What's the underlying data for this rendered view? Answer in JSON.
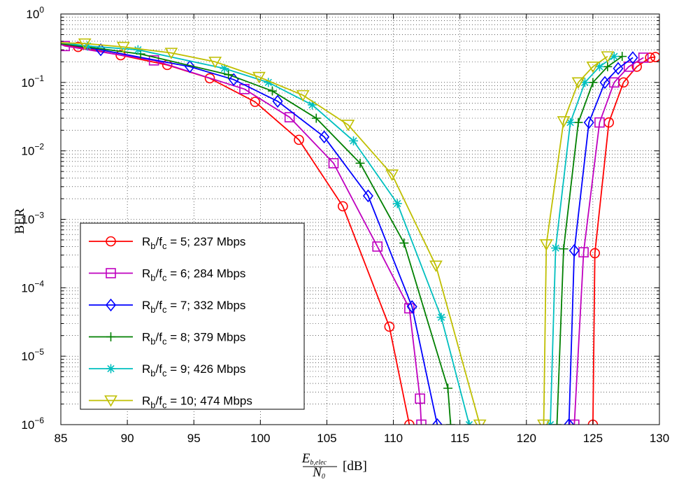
{
  "chart_data": {
    "type": "line",
    "xlabel_numer": "E",
    "xlabel_numer_sub": "b,elec",
    "xlabel_denom": "N",
    "xlabel_denom_sub": "0",
    "xlabel_unit": "[dB]",
    "ylabel": "BER",
    "xlim": [
      85,
      130
    ],
    "ylim": [
      1e-06,
      1
    ],
    "yscale": "log",
    "grid": true,
    "legend_position": "lower-left",
    "x_ticks": [
      "85",
      "90",
      "95",
      "100",
      "105",
      "110",
      "115",
      "120",
      "125",
      "130"
    ],
    "y_ticks": [
      {
        "base": "10",
        "exp": "0"
      },
      {
        "base": "10",
        "exp": "−1"
      },
      {
        "base": "10",
        "exp": "−2"
      },
      {
        "base": "10",
        "exp": "−3"
      },
      {
        "base": "10",
        "exp": "−4"
      },
      {
        "base": "10",
        "exp": "−5"
      },
      {
        "base": "10",
        "exp": "−6"
      }
    ],
    "series": [
      {
        "name": "R_b/f_c = 5; 237 Mbps",
        "leg": {
          "a": "R",
          "b": "b",
          "c": "/f",
          "d": "c",
          "e": " = 5; 237 Mbps"
        },
        "color": "#ff0000",
        "marker": "circle",
        "left": [
          [
            85,
            0.36
          ],
          [
            86.3,
            0.33
          ],
          [
            89.5,
            0.25
          ],
          [
            93,
            0.18
          ],
          [
            96.2,
            0.115
          ],
          [
            99.6,
            0.052
          ],
          [
            102.9,
            0.0145
          ],
          [
            106.2,
            0.00155
          ],
          [
            109.7,
            2.7e-05
          ],
          [
            111.2,
            1e-06
          ]
        ],
        "right": [
          [
            125,
            1e-06
          ],
          [
            125.15,
            0.00032
          ],
          [
            126.2,
            0.026
          ],
          [
            127.3,
            0.1
          ],
          [
            128.3,
            0.17
          ],
          [
            129.3,
            0.23
          ],
          [
            129.7,
            0.235
          ]
        ]
      },
      {
        "name": "R_b/f_c = 6; 284 Mbps",
        "leg": {
          "a": "R",
          "b": "b",
          "c": "/f",
          "d": "c",
          "e": " = 6; 284 Mbps"
        },
        "color": "#bf00bf",
        "marker": "square",
        "left": [
          [
            85,
            0.36
          ],
          [
            85.3,
            0.34
          ],
          [
            92,
            0.21
          ],
          [
            98.8,
            0.08
          ],
          [
            102.2,
            0.031
          ],
          [
            105.5,
            0.0066
          ],
          [
            108.8,
            0.0004
          ],
          [
            111.2,
            5e-05
          ],
          [
            112,
            2.4e-06
          ],
          [
            112.1,
            1e-06
          ]
        ],
        "right": [
          [
            123.6,
            1e-06
          ],
          [
            124.3,
            0.00033
          ],
          [
            125.5,
            0.026
          ],
          [
            126.6,
            0.1
          ],
          [
            127.7,
            0.17
          ],
          [
            128.8,
            0.23
          ]
        ]
      },
      {
        "name": "R_b/f_c = 7; 332 Mbps",
        "leg": {
          "a": "R",
          "b": "b",
          "c": "/f",
          "d": "c",
          "e": " = 7; 332 Mbps"
        },
        "color": "#0000ff",
        "marker": "diamond",
        "left": [
          [
            85,
            0.37
          ],
          [
            88,
            0.3
          ],
          [
            94.7,
            0.17
          ],
          [
            98,
            0.11
          ],
          [
            101.3,
            0.053
          ],
          [
            104.8,
            0.016
          ],
          [
            108.1,
            0.0022
          ],
          [
            111.4,
            5.3e-05
          ],
          [
            113.3,
            1e-06
          ]
        ],
        "right": [
          [
            123.2,
            1e-06
          ],
          [
            123.6,
            0.00035
          ],
          [
            124.7,
            0.026
          ],
          [
            125.9,
            0.1
          ],
          [
            126.9,
            0.16
          ],
          [
            128.0,
            0.23
          ]
        ]
      },
      {
        "name": "R_b/f_c = 8; 379 Mbps",
        "leg": {
          "a": "R",
          "b": "b",
          "c": "/f",
          "d": "c",
          "e": " = 8; 379 Mbps"
        },
        "color": "#008000",
        "marker": "plus",
        "left": [
          [
            85,
            0.37
          ],
          [
            91,
            0.26
          ],
          [
            97.6,
            0.13
          ],
          [
            100.9,
            0.075
          ],
          [
            104.2,
            0.03
          ],
          [
            107.5,
            0.0066
          ],
          [
            110.8,
            0.00045
          ],
          [
            114.1,
            3.4e-06
          ],
          [
            114.3,
            1e-06
          ]
        ],
        "right": [
          [
            122.3,
            1e-06
          ],
          [
            122.8,
            0.00037
          ],
          [
            123.9,
            0.026
          ],
          [
            125.0,
            0.1
          ],
          [
            126.1,
            0.17
          ],
          [
            127.2,
            0.24
          ]
        ]
      },
      {
        "name": "R_b/f_c = 9; 426 Mbps",
        "leg": {
          "a": "R",
          "b": "b",
          "c": "/f",
          "d": "c",
          "e": " = 9; 426 Mbps"
        },
        "color": "#00bfbf",
        "marker": "star",
        "left": [
          [
            85,
            0.38
          ],
          [
            87,
            0.34
          ],
          [
            90.8,
            0.3
          ],
          [
            97.3,
            0.16
          ],
          [
            100.6,
            0.1
          ],
          [
            103.9,
            0.047
          ],
          [
            107.0,
            0.014
          ],
          [
            110.3,
            0.0017
          ],
          [
            113.6,
            3.7e-05
          ],
          [
            115.7,
            1e-06
          ]
        ],
        "right": [
          [
            121.8,
            1e-06
          ],
          [
            122.2,
            0.00038
          ],
          [
            123.3,
            0.026
          ],
          [
            124.4,
            0.1
          ],
          [
            125.5,
            0.17
          ],
          [
            126.6,
            0.24
          ]
        ]
      },
      {
        "name": "R_b/f_c = 10; 474 Mbps",
        "leg": {
          "a": "R",
          "b": "b",
          "c": "/f",
          "d": "c",
          "e": " = 10; 474 Mbps"
        },
        "color": "#bfbf00",
        "marker": "triangle-down",
        "left": [
          [
            85,
            0.38
          ],
          [
            86.8,
            0.37
          ],
          [
            89.7,
            0.33
          ],
          [
            93.3,
            0.27
          ],
          [
            96.6,
            0.2
          ],
          [
            99.9,
            0.12
          ],
          [
            103.2,
            0.065
          ],
          [
            106.6,
            0.024
          ],
          [
            109.9,
            0.0045
          ],
          [
            113.2,
            0.00021
          ],
          [
            116.5,
            1e-06
          ]
        ],
        "right": [
          [
            121.3,
            1e-06
          ],
          [
            121.5,
            0.00043
          ],
          [
            122.8,
            0.027
          ],
          [
            123.9,
            0.1
          ],
          [
            125.0,
            0.17
          ],
          [
            126.1,
            0.24
          ]
        ]
      }
    ]
  }
}
